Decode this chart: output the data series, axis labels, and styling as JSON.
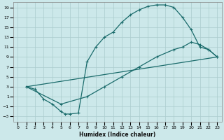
{
  "xlabel": "Humidex (Indice chaleur)",
  "bg_color": "#cce8ea",
  "grid_color": "#aacccc",
  "line_color": "#1a6b6b",
  "xlim": [
    -0.5,
    23.5
  ],
  "ylim": [
    -4,
    20
  ],
  "xticks": [
    0,
    1,
    2,
    3,
    4,
    5,
    6,
    7,
    8,
    9,
    10,
    11,
    12,
    13,
    14,
    15,
    16,
    17,
    18,
    19,
    20,
    21,
    22,
    23
  ],
  "yticks": [
    -3,
    -1,
    1,
    3,
    5,
    7,
    9,
    11,
    13,
    15,
    17,
    19
  ],
  "curve1_x": [
    1,
    2,
    3,
    4,
    5,
    5.5,
    6,
    7,
    8,
    9,
    10,
    11,
    12,
    13,
    14,
    15,
    16,
    17,
    18,
    19,
    20,
    21,
    22,
    23
  ],
  "curve1_y": [
    3,
    2.5,
    0.5,
    -0.5,
    -2,
    -2.5,
    -2.5,
    -2.3,
    8,
    11,
    13,
    14,
    16,
    17.5,
    18.5,
    19.2,
    19.5,
    19.5,
    19,
    17,
    14.5,
    11,
    10.5,
    9
  ],
  "curve2_x": [
    1,
    5,
    8,
    10,
    12,
    14,
    16,
    18,
    19,
    20,
    21,
    22,
    23
  ],
  "curve2_y": [
    3,
    -0.5,
    1,
    3,
    5,
    7,
    9,
    10.5,
    11,
    12,
    11.5,
    10.5,
    9
  ],
  "curve3_x": [
    1,
    23
  ],
  "curve3_y": [
    3,
    9
  ]
}
